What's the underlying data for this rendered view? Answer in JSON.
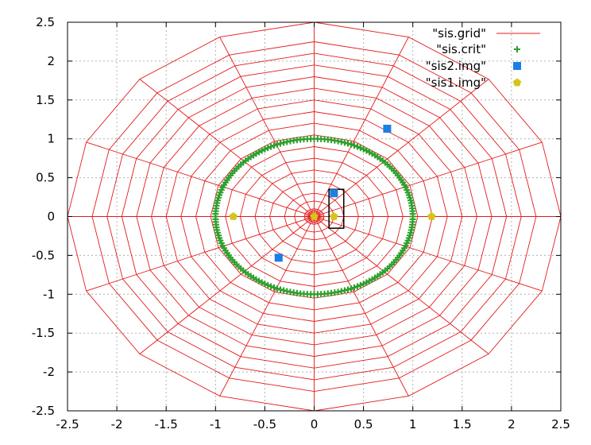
{
  "chart_data": {
    "type": "scatter",
    "xlim": [
      -2.5,
      2.5
    ],
    "ylim": [
      -2.5,
      2.5
    ],
    "xticks": [
      "-2.5",
      "-2",
      "-1.5",
      "-1",
      "-0.5",
      "0",
      "0.5",
      "1",
      "1.5",
      "2",
      "2.5"
    ],
    "yticks": [
      "2.5",
      "2",
      "1.5",
      "1",
      "0.5",
      "0",
      "-0.5",
      "-1",
      "-1.5",
      "-2",
      "-2.5"
    ],
    "grid": true,
    "legend_position": "top-right",
    "colors": {
      "grid": "#e41a1c",
      "crit": "#2ca02c",
      "img2": "#1a7fe6",
      "img1": "#d4c51a",
      "box": "#000000"
    },
    "series": [
      {
        "name": "\"sis.grid\"",
        "style": "line",
        "radii": [
          0.1,
          0.2,
          0.3,
          0.45,
          0.6,
          0.75,
          0.9,
          1.05,
          1.2,
          1.35,
          1.5,
          1.65,
          1.8,
          1.95,
          2.1,
          2.25,
          2.5
        ],
        "spokes": 16
      },
      {
        "name": "\"sis.crit\"",
        "style": "points",
        "marker": "plus",
        "radius": 1.0,
        "count": 180
      },
      {
        "name": "\"sis2.img\"",
        "style": "points",
        "marker": "square",
        "points": [
          [
            0.74,
            1.13
          ],
          [
            0.2,
            0.3
          ],
          [
            -0.36,
            -0.53
          ]
        ]
      },
      {
        "name": "\"sis1.img\"",
        "style": "points",
        "marker": "pentagon",
        "points": [
          [
            -0.82,
            0.0
          ],
          [
            1.19,
            0.0
          ],
          [
            0.2,
            0.0
          ],
          [
            0.0,
            0.0
          ]
        ]
      }
    ],
    "source_box": {
      "x": [
        0.15,
        0.3
      ],
      "y": [
        -0.15,
        0.35
      ]
    }
  }
}
